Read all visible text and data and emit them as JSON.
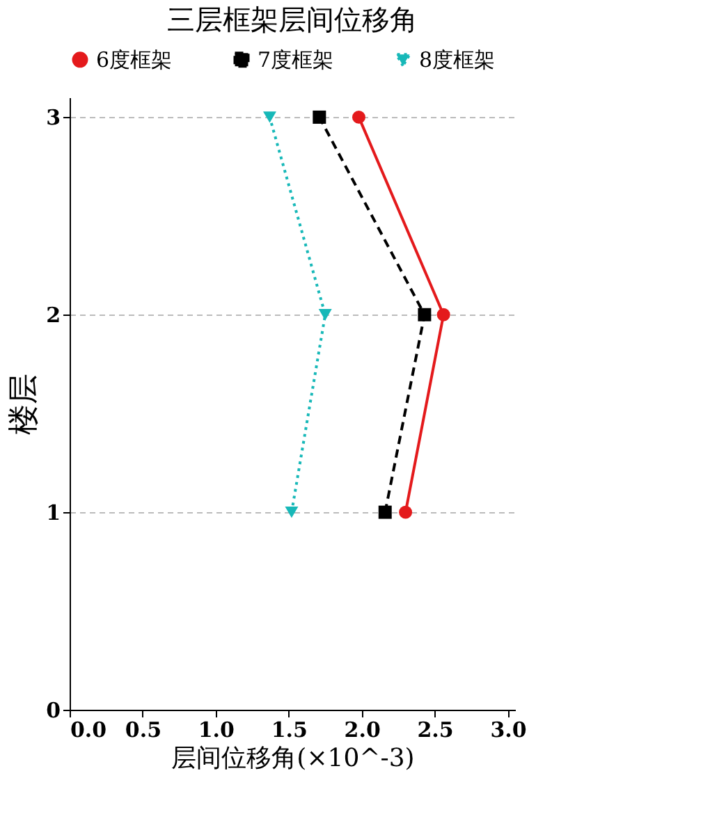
{
  "chart_data": {
    "type": "line",
    "title": "三层框架层间位移角",
    "xlabel": "层间位移角(×10^-3)",
    "ylabel": "楼层",
    "xlim": [
      0,
      3.05
    ],
    "xticks": [
      {
        "value": 0,
        "label": "0.0"
      },
      {
        "value": 0.5,
        "label": "0.5"
      },
      {
        "value": 1,
        "label": "1.0"
      },
      {
        "value": 1.5,
        "label": "1.5"
      },
      {
        "value": 2,
        "label": "2.0"
      },
      {
        "value": 2.5,
        "label": "2.5"
      },
      {
        "value": 3,
        "label": "3.0"
      }
    ],
    "ylim": [
      0,
      3.1
    ],
    "yticks": [
      0,
      1,
      2,
      3
    ],
    "grid": "y",
    "legend": "top",
    "series": [
      {
        "name": "6度框架",
        "color": "#e41a1c",
        "marker": "circle",
        "line_style": "solid",
        "x": [
          2.3,
          2.56,
          1.98
        ],
        "values": [
          1,
          2,
          3
        ]
      },
      {
        "name": "7度框架",
        "color": "#000000",
        "marker": "square",
        "line_style": "dashed",
        "x": [
          2.16,
          2.43,
          1.71
        ],
        "values": [
          1,
          2,
          3
        ]
      },
      {
        "name": "8度框架",
        "color": "#17b8b8",
        "marker": "triangle",
        "line_style": "dotted",
        "x": [
          1.52,
          1.75,
          1.37
        ],
        "values": [
          1,
          2,
          3
        ]
      }
    ]
  }
}
